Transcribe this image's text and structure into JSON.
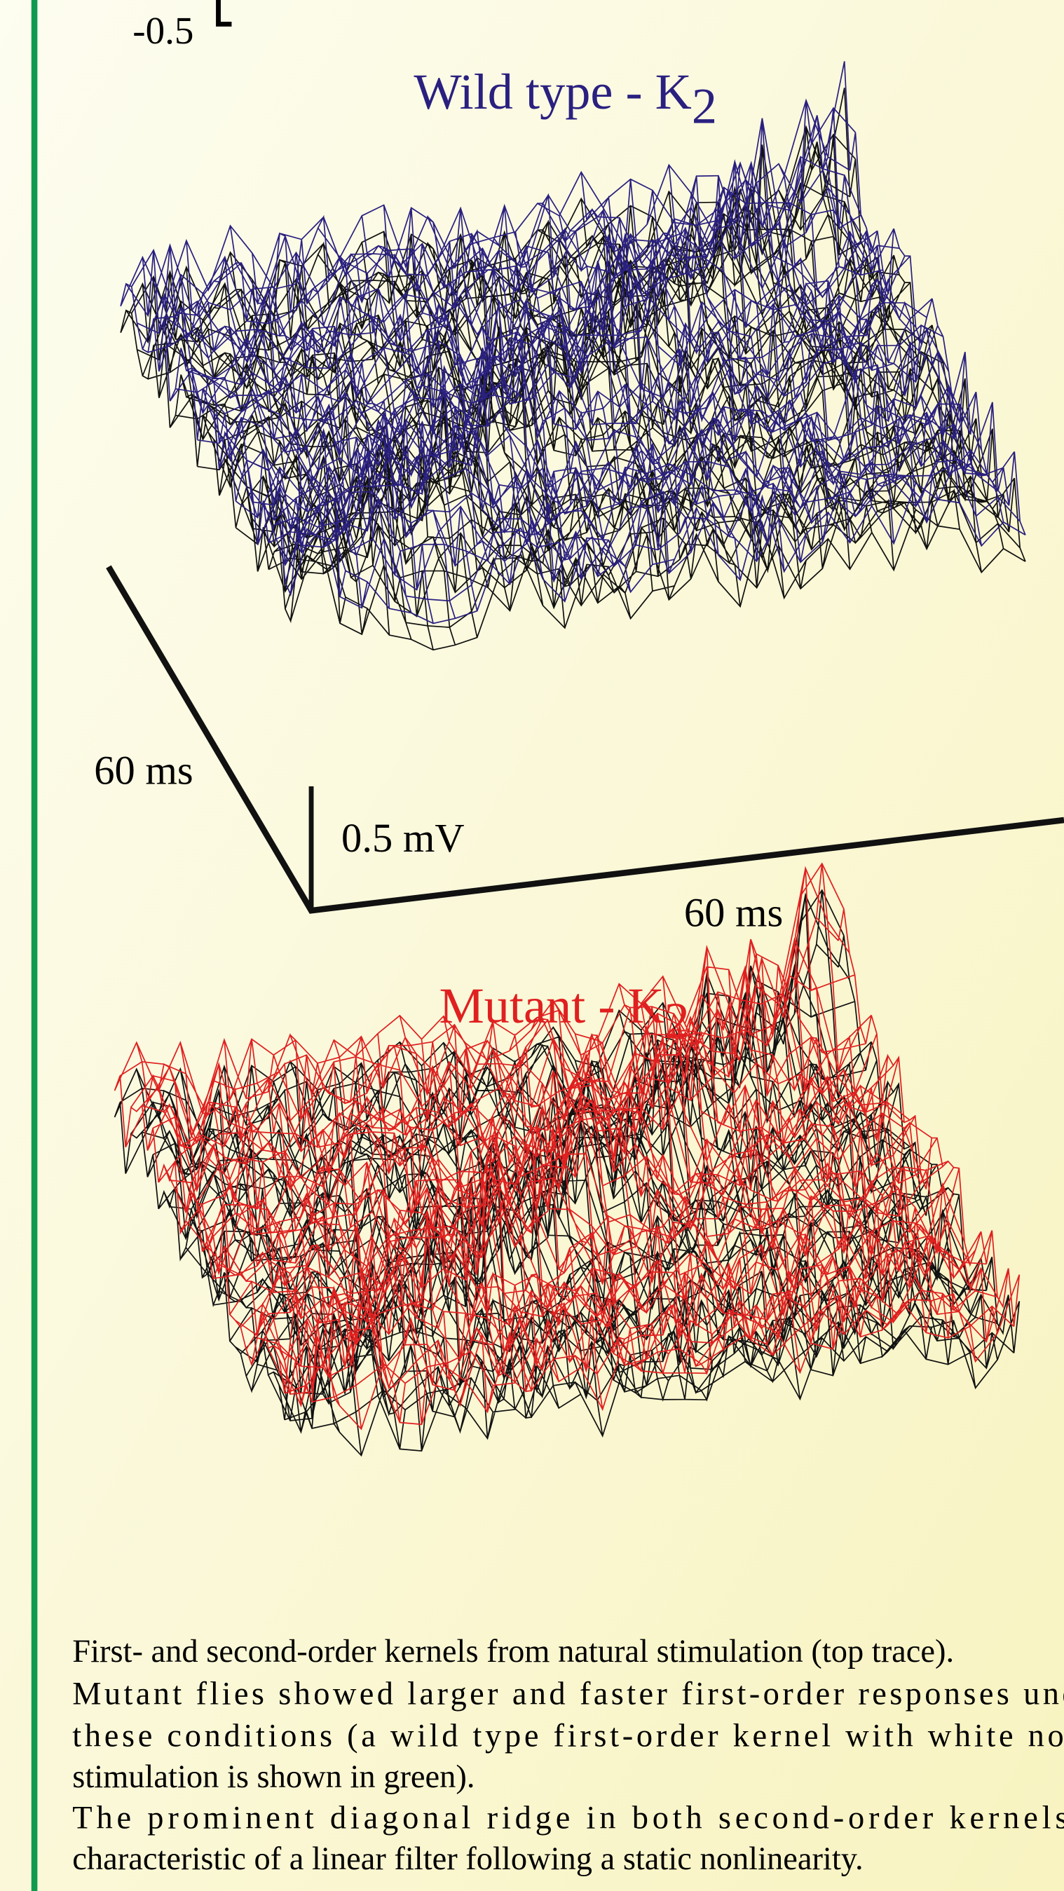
{
  "scale_label": "-0.5",
  "wild_type": {
    "title": "Wild type - K",
    "subscript": "2"
  },
  "axes": {
    "depth_label": "60 ms",
    "voltage_label": "0.5 mV",
    "time_label": "60 ms"
  },
  "mutant": {
    "title": "Mutant - K",
    "subscript": "2"
  },
  "caption": {
    "lines": [
      "First- and second-order kernels from natural stimulation (top trace).",
      "Mutant flies showed larger and faster first-order responses under",
      "these conditions (a wild type first-order kernel with white noise",
      "stimulation is shown in green).",
      "The prominent diagonal ridge in both second-order kernels is",
      "characteristic of a linear filter following a static nonlinearity."
    ]
  }
}
